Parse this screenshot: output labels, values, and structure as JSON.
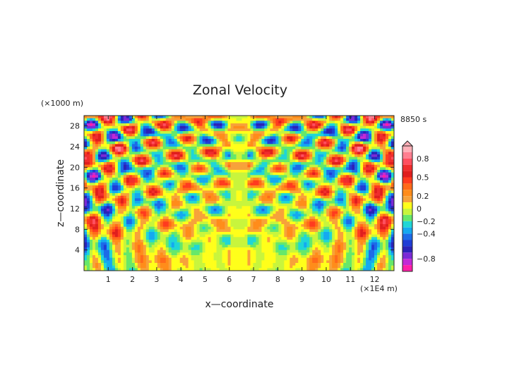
{
  "chart_data": {
    "type": "heatmap",
    "title": "Zonal Velocity",
    "xlabel": "x—coordinate",
    "ylabel": "z—coordinate",
    "x_unit": "(×1E4 m)",
    "y_unit": "(×1000 m)",
    "time_label": "8850 s",
    "x_ticks": [
      1,
      2,
      3,
      4,
      5,
      6,
      7,
      8,
      9,
      10,
      11,
      12
    ],
    "y_ticks": [
      4,
      8,
      12,
      16,
      20,
      24,
      28
    ],
    "xlim": [
      0,
      12.8
    ],
    "ylim": [
      0,
      30
    ],
    "colorbar": {
      "labels": [
        "0.8",
        "0.5",
        "0.2",
        "0",
        "−0.2",
        "−0.4",
        "−0.8"
      ],
      "label_values": [
        0.8,
        0.5,
        0.2,
        0,
        -0.2,
        -0.4,
        -0.8
      ],
      "range": [
        -1.0,
        1.0
      ],
      "levels": [
        {
          "from": 0.9,
          "to": 1.0,
          "color": "#ffb0b8"
        },
        {
          "from": 0.8,
          "to": 0.9,
          "color": "#ff7f90"
        },
        {
          "from": 0.7,
          "to": 0.8,
          "color": "#ff4f5f"
        },
        {
          "from": 0.6,
          "to": 0.7,
          "color": "#f02d2d"
        },
        {
          "from": 0.5,
          "to": 0.6,
          "color": "#e01e1e"
        },
        {
          "from": 0.4,
          "to": 0.5,
          "color": "#ff3b1f"
        },
        {
          "from": 0.3,
          "to": 0.4,
          "color": "#ff6a1a"
        },
        {
          "from": 0.2,
          "to": 0.3,
          "color": "#ff8c1a"
        },
        {
          "from": 0.1,
          "to": 0.2,
          "color": "#f7a23a"
        },
        {
          "from": 0.0,
          "to": 0.1,
          "color": "#ffff1a"
        },
        {
          "from": -0.1,
          "to": 0.0,
          "color": "#c8f53c"
        },
        {
          "from": -0.2,
          "to": -0.1,
          "color": "#66e86a"
        },
        {
          "from": -0.3,
          "to": -0.2,
          "color": "#1fd6d6"
        },
        {
          "from": -0.4,
          "to": -0.3,
          "color": "#14a9f0"
        },
        {
          "from": -0.5,
          "to": -0.4,
          "color": "#1c6be8"
        },
        {
          "from": -0.6,
          "to": -0.5,
          "color": "#1f3dd6"
        },
        {
          "from": -0.7,
          "to": -0.6,
          "color": "#2a22b8"
        },
        {
          "from": -0.8,
          "to": -0.7,
          "color": "#7a2ad6"
        },
        {
          "from": -0.9,
          "to": -0.8,
          "color": "#c22ad6"
        },
        {
          "from": -1.0,
          "to": -0.9,
          "color": "#ff1fa8"
        }
      ]
    },
    "grid": false
  }
}
